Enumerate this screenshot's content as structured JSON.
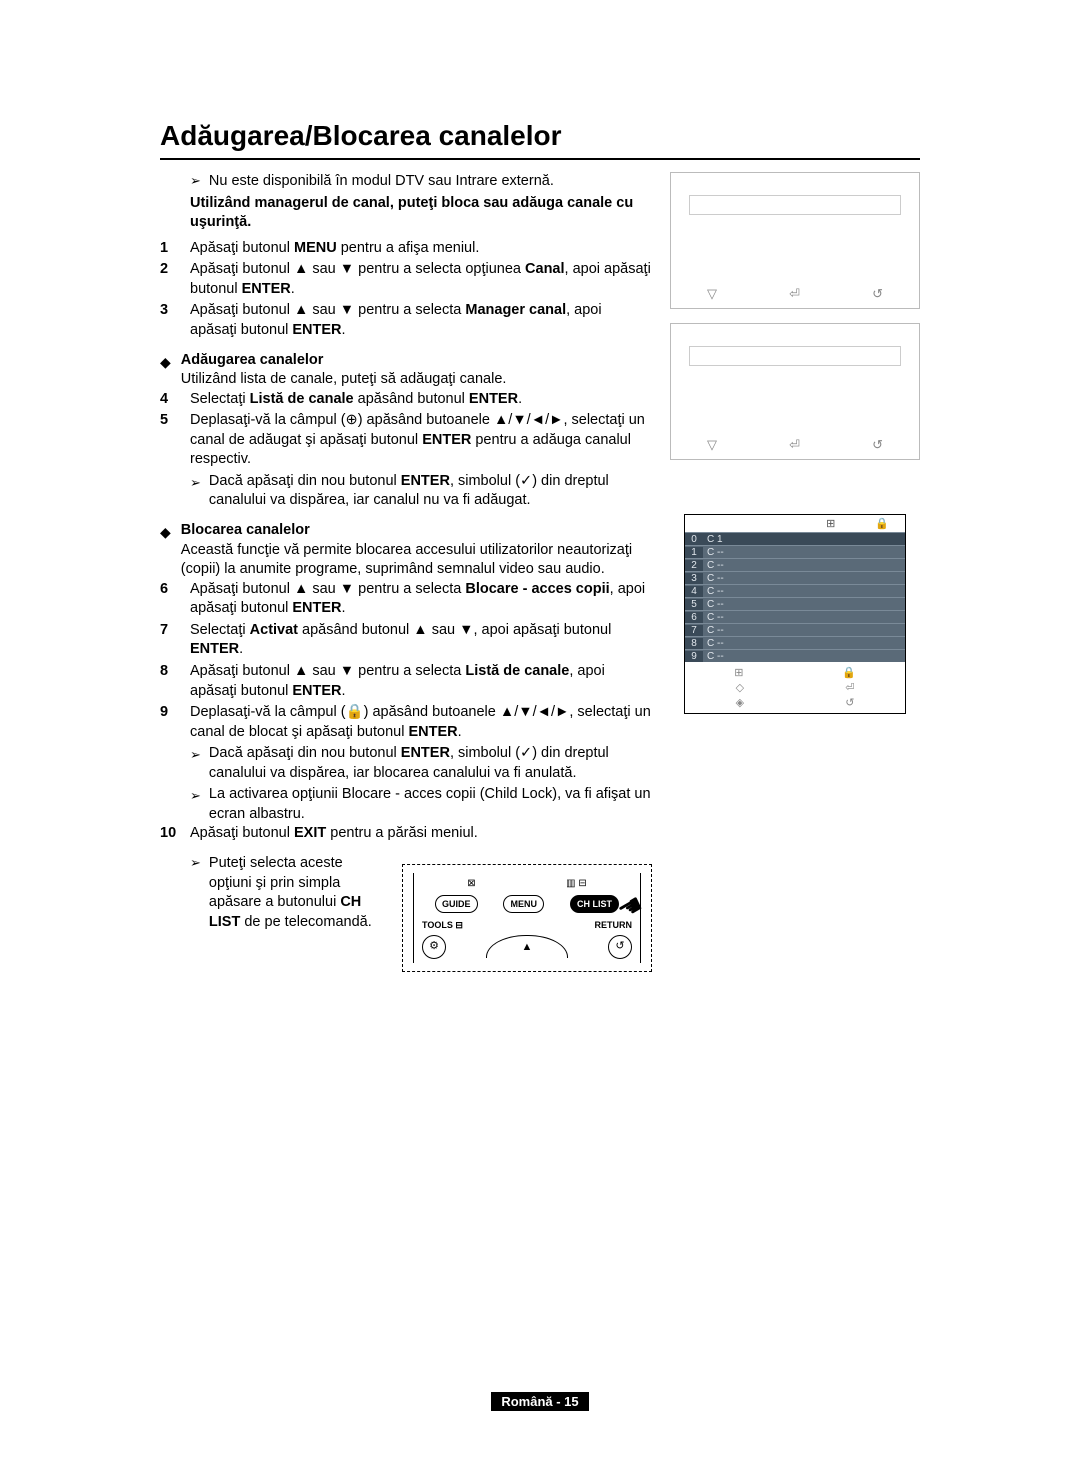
{
  "title": "Adăugarea/Blocarea canalelor",
  "intro_note": "Nu este disponibilă în modul DTV sau Intrare externă.",
  "intro_bold": "Utilizând managerul de canal, puteţi bloca sau adăuga canale cu uşurinţă.",
  "steps": {
    "s1_a": "Apăsaţi butonul ",
    "s1_b": "MENU",
    "s1_c": " pentru a afişa meniul.",
    "s2_a": "Apăsaţi butonul ▲ sau ▼ pentru a selecta opţiunea ",
    "s2_b": "Canal",
    "s2_c": ", apoi apăsaţi butonul ",
    "s2_d": "ENTER",
    "s2_e": ".",
    "s3_a": "Apăsaţi butonul ▲ sau ▼ pentru a selecta ",
    "s3_b": "Manager canal",
    "s3_c": ", apoi apăsaţi butonul ",
    "s3_d": "ENTER",
    "s3_e": "."
  },
  "section_a": {
    "heading": "Adăugarea canalelor",
    "sub": "Utilizând lista de canale, puteţi să adăugaţi canale.",
    "s4_a": "Selectaţi ",
    "s4_b": "Listă de canale",
    "s4_c": " apăsând butonul ",
    "s4_d": "ENTER",
    "s4_e": ".",
    "s5_a": "Deplasaţi-vă la câmpul (",
    "s5_b": ") apăsând butoanele ▲/▼/◄/►, selectaţi un canal de adăugat şi apăsaţi butonul ",
    "s5_c": "ENTER",
    "s5_d": " pentru a adăuga canalul respectiv.",
    "s5_note_a": "Dacă apăsaţi din nou butonul ",
    "s5_note_b": "ENTER",
    "s5_note_c": ", simbolul (",
    "s5_note_d": ") din dreptul canalului va dispărea, iar canalul nu va fi adăugat."
  },
  "section_b": {
    "heading": "Blocarea canalelor",
    "sub": "Această funcţie vă permite blocarea accesului utilizatorilor neautorizaţi (copii) la anumite programe, suprimând semnalul video sau audio.",
    "s6_a": "Apăsaţi butonul ▲ sau ▼ pentru a selecta ",
    "s6_b": "Blocare - acces copii",
    "s6_c": ", apoi apăsaţi butonul ",
    "s6_d": "ENTER",
    "s6_e": ".",
    "s7_a": "Selectaţi ",
    "s7_b": "Activat",
    "s7_c": " apăsând butonul ▲ sau ▼, apoi apăsaţi butonul ",
    "s7_d": "ENTER",
    "s7_e": ".",
    "s8_a": "Apăsaţi butonul ▲ sau ▼ pentru a selecta ",
    "s8_b": "Listă de canale",
    "s8_c": ", apoi apăsaţi butonul ",
    "s8_d": "ENTER",
    "s8_e": ".",
    "s9_a": "Deplasaţi-vă la câmpul (",
    "s9_b": ") apăsând butoanele ▲/▼/◄/►, selectaţi un canal de blocat şi apăsaţi butonul ",
    "s9_c": "ENTER",
    "s9_d": ".",
    "s9_note1_a": "Dacă apăsaţi din nou butonul ",
    "s9_note1_b": "ENTER",
    "s9_note1_c": ", simbolul (",
    "s9_note1_d": ") din dreptul canalului va dispărea, iar blocarea canalului va fi anulată.",
    "s9_note2": "La activarea opţiunii Blocare - acces copii (Child Lock), va fi afişat un ecran albastru.",
    "s10_a": "Apăsaţi butonul ",
    "s10_b": "EXIT",
    "s10_c": " pentru a părăsi meniul."
  },
  "final_note_a": "Puteţi selecta aceste opţiuni şi prin simpla apăsare a butonului ",
  "final_note_b": "CH LIST",
  "final_note_c": " de pe telecomandă.",
  "channel_table": {
    "header_icons": [
      "⊞",
      "🔒"
    ],
    "rows": [
      {
        "n": "0",
        "c": "C 1"
      },
      {
        "n": "1",
        "c": "C --"
      },
      {
        "n": "2",
        "c": "C --"
      },
      {
        "n": "3",
        "c": "C --"
      },
      {
        "n": "4",
        "c": "C --"
      },
      {
        "n": "5",
        "c": "C --"
      },
      {
        "n": "6",
        "c": "C --"
      },
      {
        "n": "7",
        "c": "C --"
      },
      {
        "n": "8",
        "c": "C --"
      },
      {
        "n": "9",
        "c": "C --"
      }
    ],
    "footer_icons_r1": [
      "⊞",
      "🔒"
    ],
    "footer_icons_r2": [
      "◇",
      "⏎"
    ],
    "footer_icons_r3": [
      "◈",
      "↺"
    ]
  },
  "remote": {
    "guide": "GUIDE",
    "menu": "MENU",
    "chlist": "CH LIST",
    "tools": "TOOLS",
    "ret": "RETURN"
  },
  "footer": "Română - 15"
}
